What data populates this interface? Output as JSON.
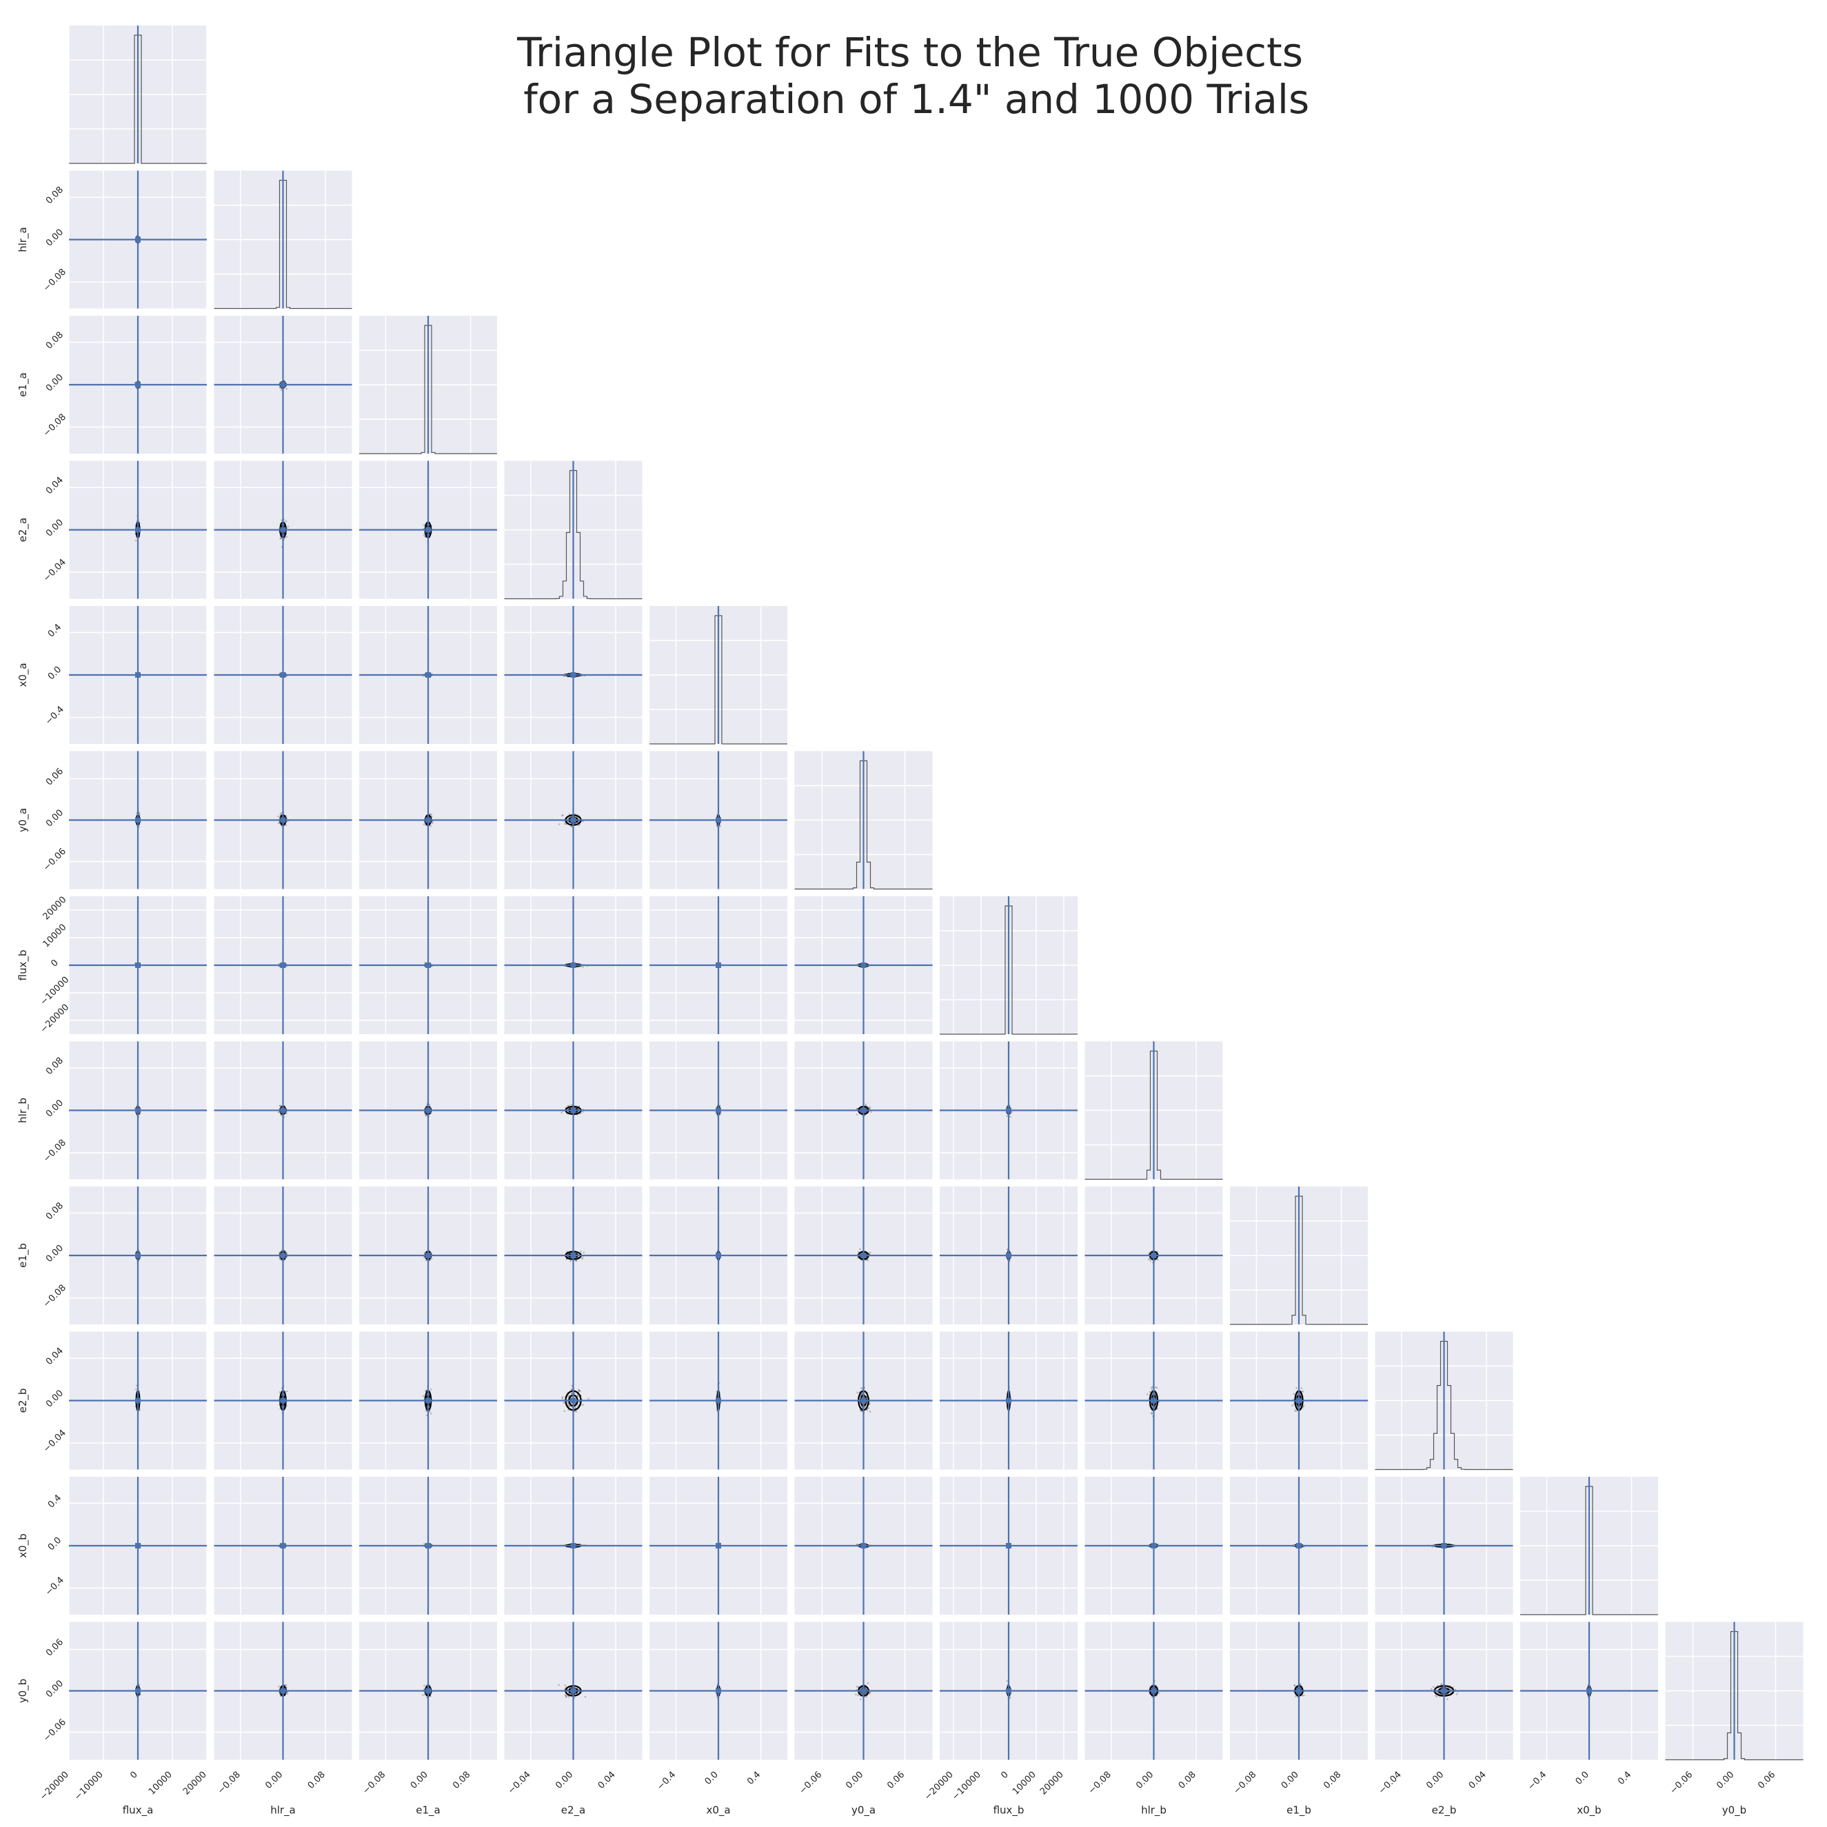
{
  "chart_data": {
    "type": "scatter",
    "subtype": "corner-plot",
    "title_lines": [
      "Triangle Plot for Fits to the True Objects",
      " for a Separation of 1.4\" and 1000 Trials"
    ],
    "parameters": [
      {
        "name": "flux_a",
        "range": [
          -20000,
          20000
        ],
        "ticks": [
          -20000,
          -10000,
          0,
          10000,
          20000
        ],
        "tick_labels": [
          "−20000",
          "−10000",
          "0",
          "10000",
          "20000"
        ],
        "truth": 0,
        "spread": 250
      },
      {
        "name": "hlr_a",
        "range": [
          -0.13,
          0.13
        ],
        "ticks": [
          -0.08,
          0.0,
          0.08
        ],
        "tick_labels": [
          "−0.08",
          "0.00",
          "0.08"
        ],
        "truth": 0,
        "spread": 0.003
      },
      {
        "name": "e1_a",
        "range": [
          -0.13,
          0.13
        ],
        "ticks": [
          -0.08,
          0.0,
          0.08
        ],
        "tick_labels": [
          "−0.08",
          "0.00",
          "0.08"
        ],
        "truth": 0,
        "spread": 0.003
      },
      {
        "name": "e2_a",
        "range": [
          -0.065,
          0.065
        ],
        "ticks": [
          -0.04,
          0.0,
          0.04
        ],
        "tick_labels": [
          "−0.04",
          "0.00",
          "0.04"
        ],
        "truth": 0,
        "spread": 0.004
      },
      {
        "name": "x0_a",
        "range": [
          -0.65,
          0.65
        ],
        "ticks": [
          -0.4,
          0.0,
          0.4
        ],
        "tick_labels": [
          "−0.4",
          "0.0",
          "0.4"
        ],
        "truth": 0,
        "spread": 0.006
      },
      {
        "name": "y0_a",
        "range": [
          -0.1,
          0.1
        ],
        "ticks": [
          -0.06,
          0.0,
          0.06
        ],
        "tick_labels": [
          "−0.06",
          "0.00",
          "0.06"
        ],
        "truth": 0,
        "spread": 0.004
      },
      {
        "name": "flux_b",
        "range": [
          -25000,
          25000
        ],
        "ticks": [
          -20000,
          -10000,
          0,
          10000,
          20000
        ],
        "tick_labels": [
          "−20000",
          "−10000",
          "0",
          "10000",
          "20000"
        ],
        "truth": 0,
        "spread": 250
      },
      {
        "name": "hlr_b",
        "range": [
          -0.13,
          0.13
        ],
        "ticks": [
          -0.08,
          0.0,
          0.08
        ],
        "tick_labels": [
          "−0.08",
          "0.00",
          "0.08"
        ],
        "truth": 0,
        "spread": 0.004
      },
      {
        "name": "e1_b",
        "range": [
          -0.13,
          0.13
        ],
        "ticks": [
          -0.08,
          0.0,
          0.08
        ],
        "tick_labels": [
          "−0.08",
          "0.00",
          "0.08"
        ],
        "truth": 0,
        "spread": 0.004
      },
      {
        "name": "e2_b",
        "range": [
          -0.065,
          0.065
        ],
        "ticks": [
          -0.04,
          0.0,
          0.04
        ],
        "tick_labels": [
          "−0.04",
          "0.00",
          "0.04"
        ],
        "truth": 0,
        "spread": 0.005
      },
      {
        "name": "x0_b",
        "range": [
          -0.65,
          0.65
        ],
        "ticks": [
          -0.4,
          0.0,
          0.4
        ],
        "tick_labels": [
          "−0.4",
          "0.0",
          "0.4"
        ],
        "truth": 0,
        "spread": 0.006
      },
      {
        "name": "y0_b",
        "range": [
          -0.1,
          0.1
        ],
        "ticks": [
          -0.06,
          0.0,
          0.06
        ],
        "tick_labels": [
          "−0.06",
          "0.00",
          "0.06"
        ],
        "truth": 0,
        "spread": 0.004
      }
    ],
    "n_trials": 1000,
    "grid": true,
    "colors": {
      "panel_background": "#EAEAF2",
      "grid": "#FFFFFF",
      "truth_line": "#4C72B0",
      "histogram": "#555555",
      "contour": "#000000",
      "points": "#555555"
    }
  }
}
